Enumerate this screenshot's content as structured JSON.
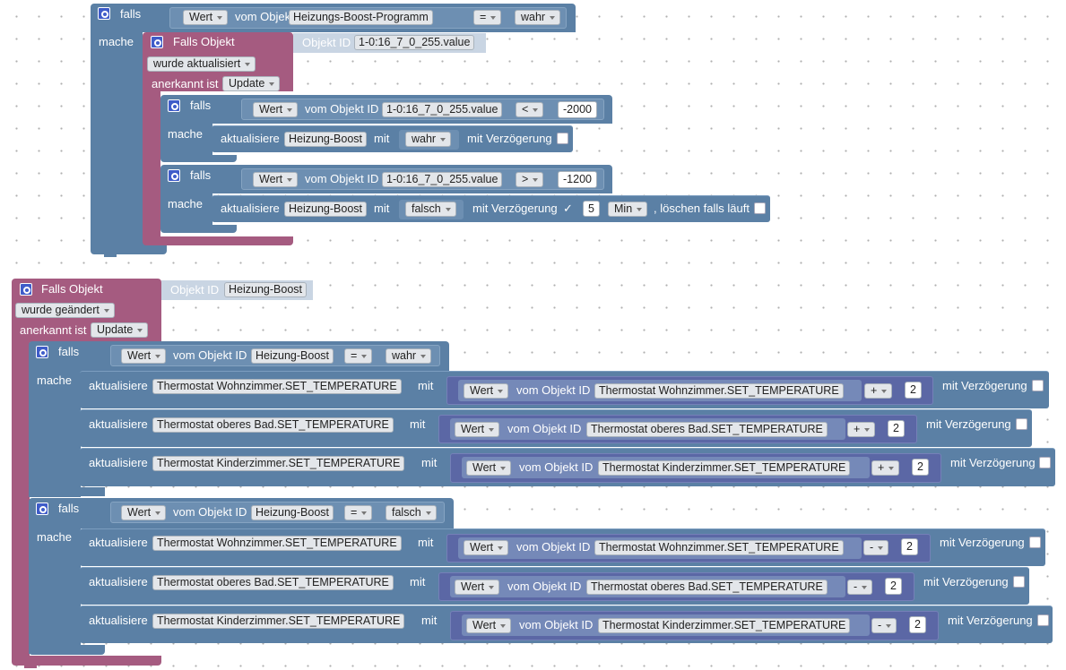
{
  "colors": {
    "logic": "#5b80a5",
    "trigger": "#a55b80",
    "script": "#5b67a5",
    "workspace": "#ffffff"
  },
  "kw": {
    "falls": "falls",
    "mache": "mache",
    "falls_objekt": "Falls Objekt",
    "objekt_id": "Objekt ID",
    "anerkannt_ist": "anerkannt ist",
    "vom_objekt_id": "vom Objekt ID",
    "aktualisiere": "aktualisiere",
    "mit": "mit",
    "mit_verzoegerung": "mit Verzögerung",
    "loeschen": ", löschen falls läuft",
    "checked_mark": "✓"
  },
  "block1": {
    "if_prop": "Wert",
    "if_obj": "Heizungs-Boost-Programm",
    "if_op": "=",
    "if_val": "wahr",
    "trigger": {
      "obj_id": "1-0:16_7_0_255.value",
      "event": "wurde aktualisiert",
      "ack": "Update"
    },
    "if_a": {
      "prop": "Wert",
      "obj": "1-0:16_7_0_255.value",
      "op": "<",
      "num": "-2000",
      "target": "Heizung-Boost",
      "value": "wahr"
    },
    "if_b": {
      "prop": "Wert",
      "obj": "1-0:16_7_0_255.value",
      "op": ">",
      "num": "-1200",
      "target": "Heizung-Boost",
      "value": "falsch",
      "delay": "5",
      "unit": "Min"
    }
  },
  "block2": {
    "trigger": {
      "obj_id": "Heizung-Boost",
      "event": "wurde geändert",
      "ack": "Update"
    },
    "if_true": {
      "prop": "Wert",
      "obj": "Heizung-Boost",
      "op": "=",
      "val": "wahr",
      "rows": [
        {
          "target": "Thermostat Wohnzimmer.SET_TEMPERATURE",
          "prop": "Wert",
          "obj": "Thermostat Wohnzimmer.SET_TEMPERATURE",
          "op": "+",
          "num": "2"
        },
        {
          "target": "Thermostat oberes Bad.SET_TEMPERATURE",
          "prop": "Wert",
          "obj": "Thermostat oberes Bad.SET_TEMPERATURE",
          "op": "+",
          "num": "2"
        },
        {
          "target": "Thermostat Kinderzimmer.SET_TEMPERATURE",
          "prop": "Wert",
          "obj": "Thermostat Kinderzimmer.SET_TEMPERATURE",
          "op": "+",
          "num": "2"
        }
      ]
    },
    "if_false": {
      "prop": "Wert",
      "obj": "Heizung-Boost",
      "op": "=",
      "val": "falsch",
      "rows": [
        {
          "target": "Thermostat Wohnzimmer.SET_TEMPERATURE",
          "prop": "Wert",
          "obj": "Thermostat Wohnzimmer.SET_TEMPERATURE",
          "op": "-",
          "num": "2"
        },
        {
          "target": "Thermostat oberes Bad.SET_TEMPERATURE",
          "prop": "Wert",
          "obj": "Thermostat oberes Bad.SET_TEMPERATURE",
          "op": "-",
          "num": "2"
        },
        {
          "target": "Thermostat Kinderzimmer.SET_TEMPERATURE",
          "prop": "Wert",
          "obj": "Thermostat Kinderzimmer.SET_TEMPERATURE",
          "op": "-",
          "num": "2"
        }
      ]
    }
  }
}
